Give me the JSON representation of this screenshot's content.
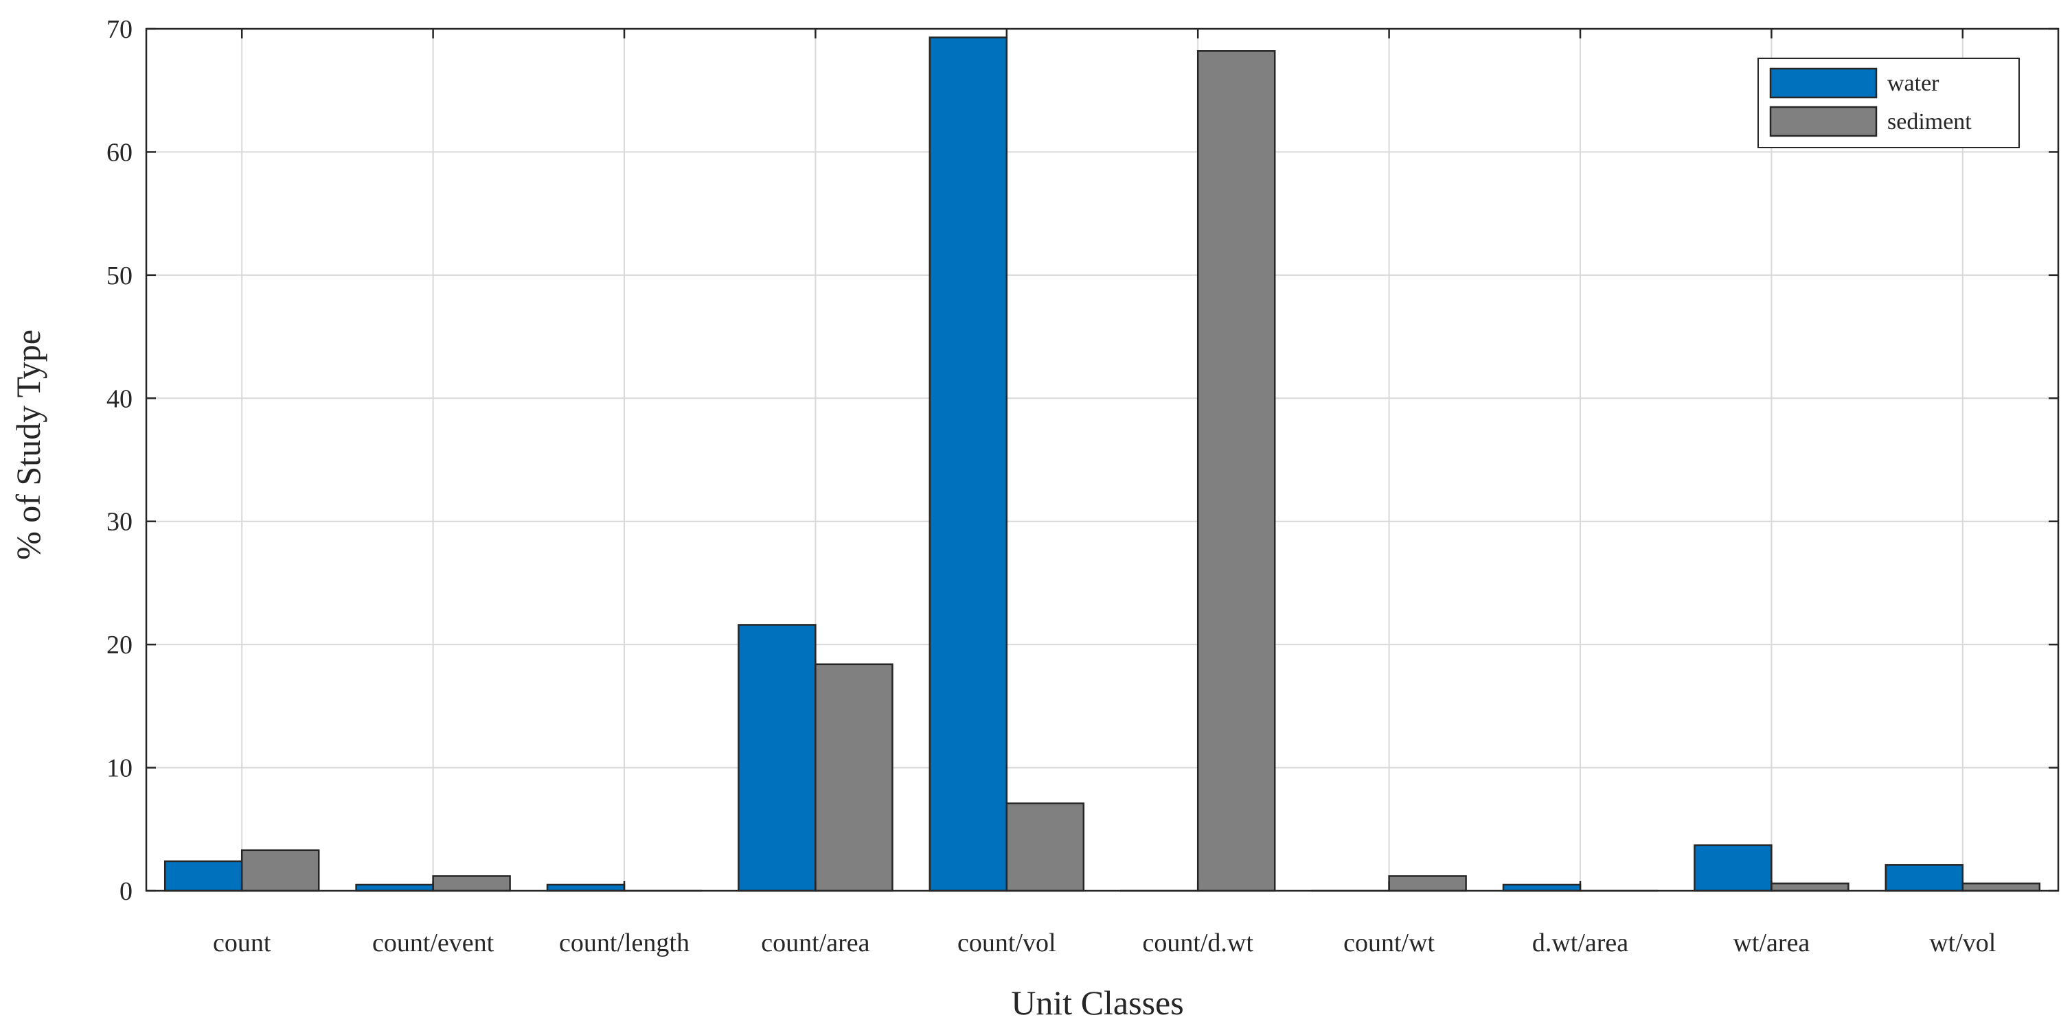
{
  "chart_data": {
    "type": "bar",
    "title": "",
    "xlabel": "Unit Classes",
    "ylabel": "% of Study Type",
    "categories": [
      "count",
      "count/event",
      "count/length",
      "count/area",
      "count/vol",
      "count/d.wt",
      "count/wt",
      "d.wt/area",
      "wt/area",
      "wt/vol"
    ],
    "series": [
      {
        "name": "water",
        "color": "#0072BD",
        "values": [
          2.4,
          0.5,
          0.5,
          21.6,
          69.3,
          0.0,
          0.0,
          0.5,
          3.7,
          2.1
        ]
      },
      {
        "name": "sediment",
        "color": "#808080",
        "values": [
          3.3,
          1.2,
          0.0,
          18.4,
          7.1,
          68.2,
          1.2,
          0.0,
          0.6,
          0.6
        ]
      }
    ],
    "ylim": [
      0,
      70
    ],
    "yticks": [
      0,
      10,
      20,
      30,
      40,
      50,
      60,
      70
    ],
    "grid": true,
    "legend_position": "top-right"
  }
}
